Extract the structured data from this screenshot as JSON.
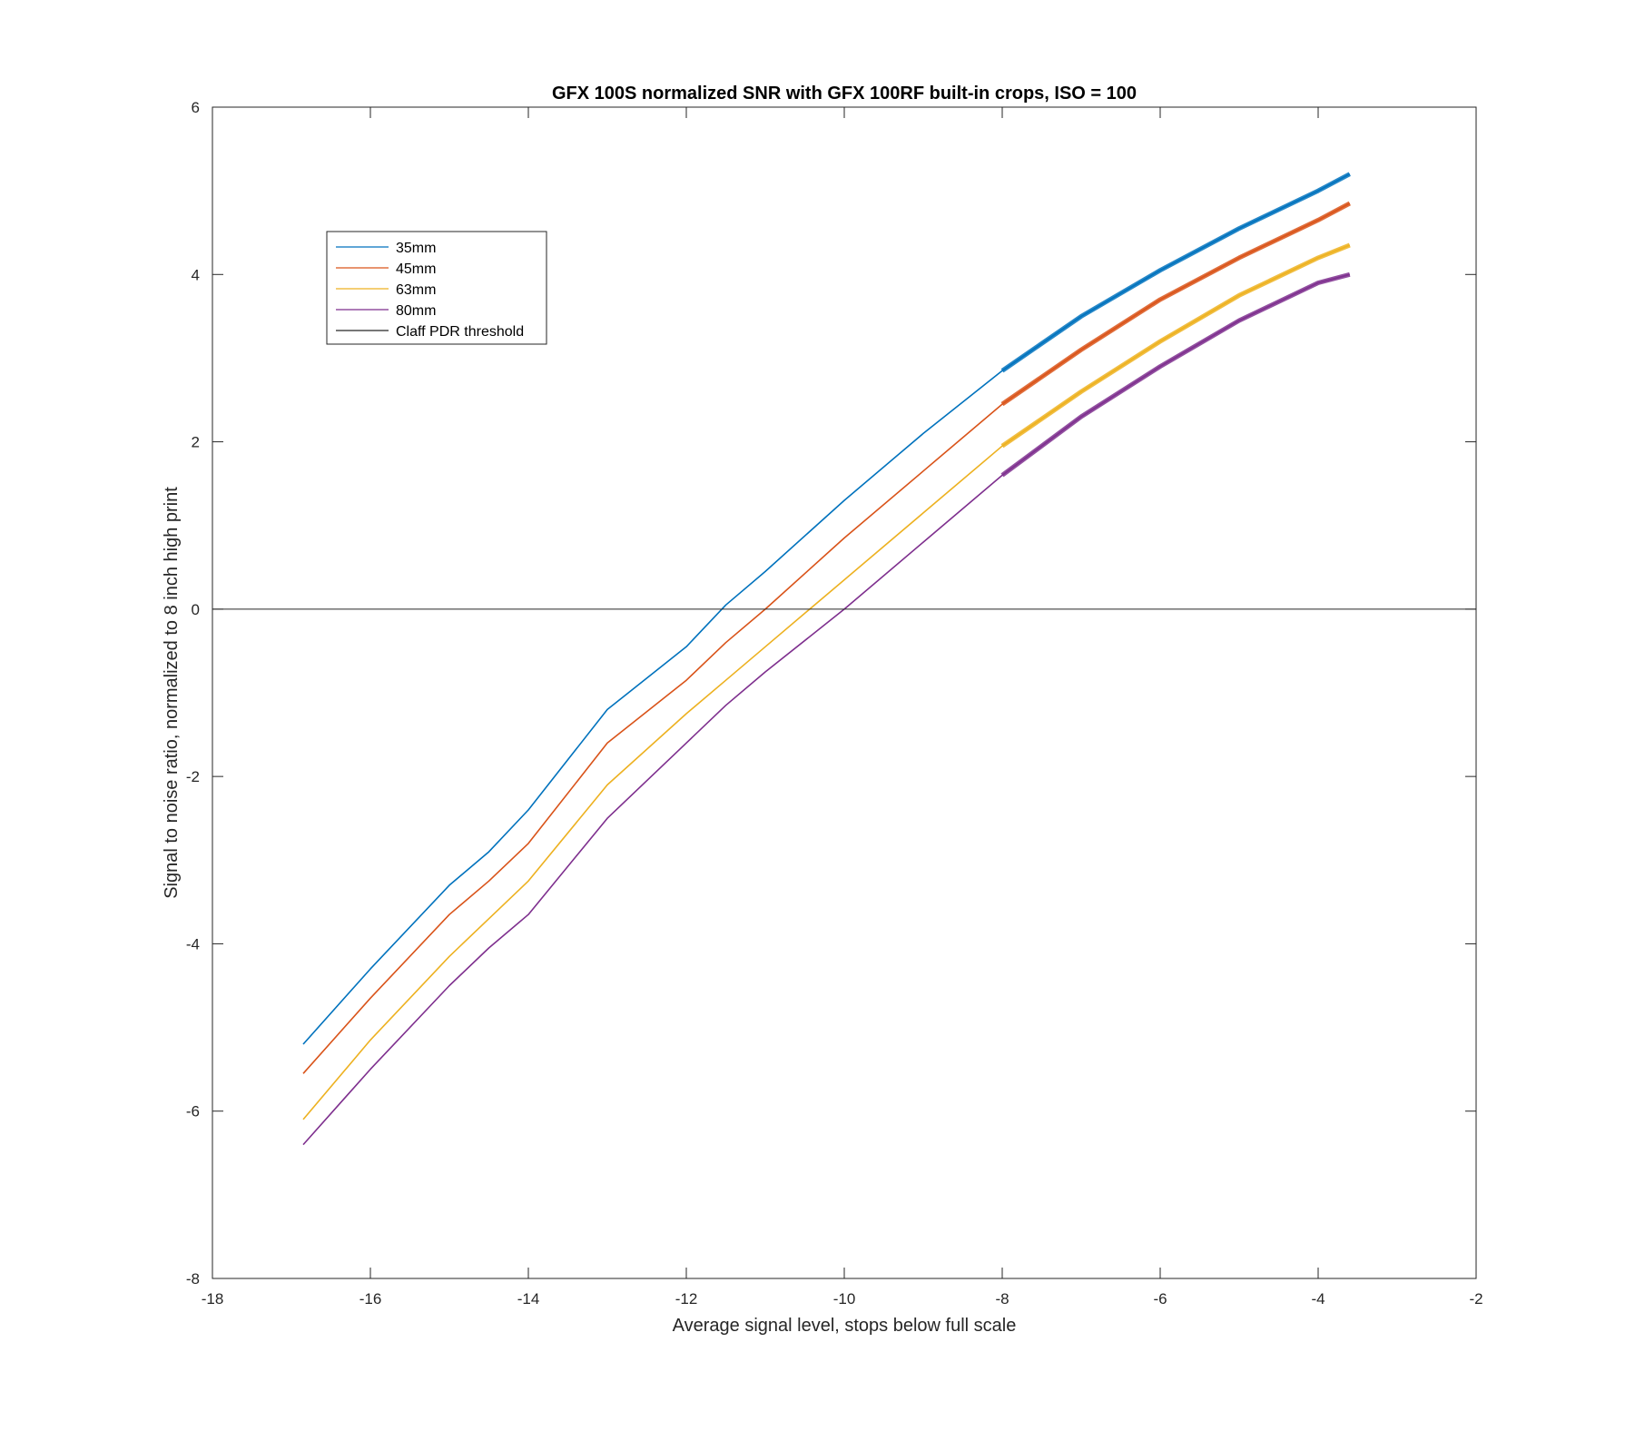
{
  "chart_data": {
    "type": "line",
    "title": "GFX 100S normalized SNR with GFX 100RF built-in crops, ISO = 100",
    "xlabel": "Average signal level, stops below full scale",
    "ylabel": "Signal to noise ratio, normalized to 8 inch high print",
    "xlim": [
      -18,
      -2
    ],
    "ylim": [
      -8,
      6
    ],
    "xticks": [
      -18,
      -16,
      -14,
      -12,
      -10,
      -8,
      -6,
      -4,
      -2
    ],
    "yticks": [
      -8,
      -6,
      -4,
      -2,
      0,
      2,
      4,
      6
    ],
    "grid": false,
    "legend_position": "top-left",
    "series": [
      {
        "name": "35mm",
        "color": "#0072BD",
        "x": [
          -16.85,
          -16.0,
          -15.0,
          -14.5,
          -14.0,
          -13.0,
          -12.0,
          -11.5,
          -11.0,
          -10.0,
          -9.0,
          -8.0,
          -7.0,
          -6.0,
          -5.0,
          -4.0,
          -3.6
        ],
        "y": [
          -5.2,
          -4.3,
          -3.3,
          -2.9,
          -2.4,
          -1.2,
          -0.45,
          0.05,
          0.45,
          1.3,
          2.1,
          2.85,
          3.5,
          4.05,
          4.55,
          5.0,
          5.2
        ]
      },
      {
        "name": "45mm",
        "color": "#D95319",
        "x": [
          -16.85,
          -16.0,
          -15.0,
          -14.5,
          -14.0,
          -13.0,
          -12.0,
          -11.5,
          -11.0,
          -10.0,
          -9.0,
          -8.0,
          -7.0,
          -6.0,
          -5.0,
          -4.0,
          -3.6
        ],
        "y": [
          -5.55,
          -4.65,
          -3.65,
          -3.25,
          -2.8,
          -1.6,
          -0.85,
          -0.4,
          0.0,
          0.85,
          1.65,
          2.45,
          3.1,
          3.7,
          4.2,
          4.65,
          4.85
        ]
      },
      {
        "name": "63mm",
        "color": "#EDB120",
        "x": [
          -16.85,
          -16.0,
          -15.0,
          -14.5,
          -14.0,
          -13.0,
          -12.0,
          -11.5,
          -11.0,
          -10.0,
          -9.0,
          -8.0,
          -7.0,
          -6.0,
          -5.0,
          -4.0,
          -3.6
        ],
        "y": [
          -6.1,
          -5.15,
          -4.15,
          -3.7,
          -3.25,
          -2.1,
          -1.25,
          -0.85,
          -0.45,
          0.35,
          1.15,
          1.95,
          2.6,
          3.2,
          3.75,
          4.2,
          4.35
        ]
      },
      {
        "name": "80mm",
        "color": "#7E2F8E",
        "x": [
          -16.85,
          -16.0,
          -15.0,
          -14.5,
          -14.0,
          -13.0,
          -12.0,
          -11.5,
          -11.0,
          -10.0,
          -9.0,
          -8.0,
          -7.0,
          -6.0,
          -5.0,
          -4.0,
          -3.6
        ],
        "y": [
          -6.4,
          -5.5,
          -4.5,
          -4.05,
          -3.65,
          -2.5,
          -1.6,
          -1.15,
          -0.75,
          0.0,
          0.8,
          1.6,
          2.3,
          2.9,
          3.45,
          3.9,
          4.0
        ]
      },
      {
        "name": "Claff PDR threshold",
        "color": "#262626",
        "x": [
          -18,
          -2
        ],
        "y": [
          0,
          0
        ]
      }
    ]
  }
}
